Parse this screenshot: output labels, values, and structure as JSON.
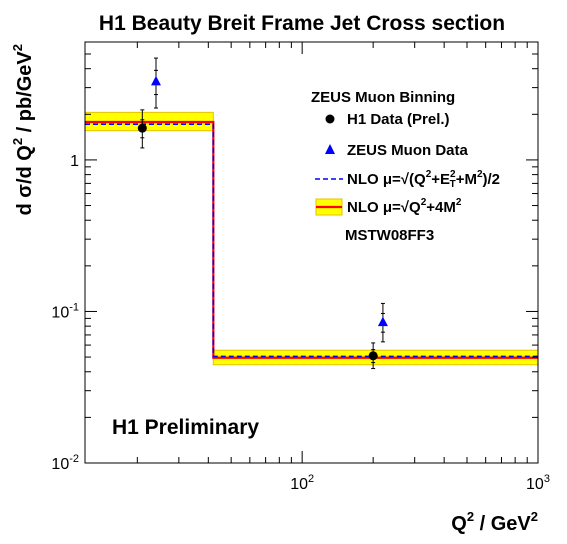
{
  "chart_data": {
    "type": "scatter",
    "title": "H1 Beauty Breit Frame Jet Cross section",
    "xlabel": {
      "pre": "Q",
      "exp": "2",
      "unit": "/ GeV",
      "unit_exp": "2"
    },
    "ylabel": {
      "pre": "d σ/d Q",
      "exp": "2",
      "post": " / pb/GeV",
      "post_exp": "2"
    },
    "x_scale": "log",
    "y_scale": "log",
    "xlim": [
      12,
      1000
    ],
    "ylim": [
      0.01,
      6
    ],
    "x_ticks": [
      {
        "value": 100,
        "base": "10",
        "exp": "2"
      },
      {
        "value": 1000,
        "base": "10",
        "exp": "3"
      }
    ],
    "y_ticks": [
      {
        "value": 0.01,
        "base": "10",
        "exp": "-2"
      },
      {
        "value": 0.1,
        "base": "10",
        "exp": "-1"
      },
      {
        "value": 1,
        "base": "1",
        "exp": ""
      }
    ],
    "grid": false,
    "legend_position": "top-right",
    "annotation": "H1 Preliminary",
    "legend_header": "ZEUS Muon Binning",
    "legend_footer": "MSTW08FF3",
    "series": [
      {
        "name": "H1 Data (Prel.)",
        "marker": "circle",
        "color": "#000000",
        "points": [
          {
            "x": 21,
            "y": 1.62,
            "err_low": 0.42,
            "err_high": 0.52,
            "stat_low": 0.22,
            "stat_high": 0.22
          },
          {
            "x": 200,
            "y": 0.051,
            "err_low": 0.009,
            "err_high": 0.011,
            "stat_low": 0.005,
            "stat_high": 0.005
          }
        ]
      },
      {
        "name": "ZEUS Muon Data",
        "marker": "triangle",
        "color": "#0000ff",
        "points": [
          {
            "x": 24,
            "y": 3.3,
            "err_low": 1.1,
            "err_high": 1.4,
            "stat_low": 0.6,
            "stat_high": 0.6
          },
          {
            "x": 220,
            "y": 0.085,
            "err_low": 0.022,
            "err_high": 0.028,
            "stat_low": 0.012,
            "stat_high": 0.012
          }
        ]
      },
      {
        "name": "NLO μ=√(Q²+E_T²+M²)/2",
        "style": "dashed-line",
        "color": "#0000ff",
        "bins": [
          {
            "x_low": 12,
            "x_high": 42,
            "y": 1.72
          },
          {
            "x_low": 42,
            "x_high": 1000,
            "y": 0.0505
          }
        ]
      },
      {
        "name": "NLO μ=√(Q²+4M²)",
        "style": "line-with-band",
        "color": "#ff0000",
        "band_color": "#ffff00",
        "band_edge_color": "#e6c200",
        "bins": [
          {
            "x_low": 12,
            "x_high": 42,
            "y": 1.78,
            "band_low": 1.56,
            "band_high": 2.06
          },
          {
            "x_low": 42,
            "x_high": 1000,
            "y": 0.0495,
            "band_low": 0.0445,
            "band_high": 0.0555
          }
        ]
      }
    ],
    "legend_entries": [
      {
        "marker": "circle",
        "parts": [
          {
            "text": "H1 Data (Prel.)"
          }
        ]
      },
      {
        "marker": "triangle",
        "parts": [
          {
            "text": "ZEUS Muon Data"
          }
        ]
      },
      {
        "marker": "dashed-line",
        "parts": [
          {
            "text": "NLO μ="
          },
          {
            "sqrt": "(Q",
            "sup": "2",
            "tail": "+E",
            "sup2": "2",
            "sub2": "T",
            "tail2": "+M",
            "sup3": "2",
            "close": ")"
          },
          {
            "text": "/2"
          }
        ]
      },
      {
        "marker": "line-with-band",
        "parts": [
          {
            "text": "NLO μ="
          },
          {
            "sqrt": "Q",
            "sup": "2",
            "tail": "+4M",
            "sup3": "2"
          }
        ]
      }
    ]
  }
}
